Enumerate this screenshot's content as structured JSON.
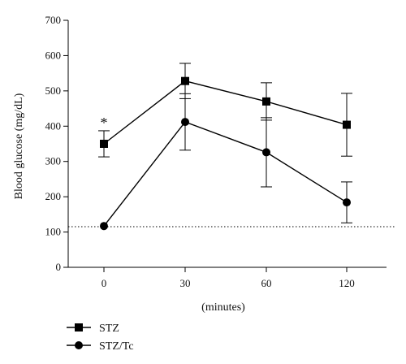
{
  "chart_data": {
    "type": "line",
    "xlabel": "(minutes)",
    "ylabel": "Blood glucose (mg/dL)",
    "ylim": [
      0,
      700
    ],
    "yticks": [
      0,
      100,
      200,
      300,
      400,
      500,
      600,
      700
    ],
    "categories": [
      "0",
      "30",
      "60",
      "120"
    ],
    "grid": false,
    "legend_position": "bottom-left",
    "reference_line": {
      "y": 115,
      "style": "dotted"
    },
    "annotations": [
      {
        "text": "*",
        "category": "0",
        "series": "STZ"
      }
    ],
    "series": [
      {
        "name": "STZ",
        "marker": "square",
        "values": [
          350,
          528,
          470,
          404
        ],
        "errors": [
          37,
          50,
          53,
          89
        ]
      },
      {
        "name": "STZ/Tc",
        "marker": "circle",
        "values": [
          117,
          412,
          326,
          184
        ],
        "errors": [
          0,
          80,
          98,
          58
        ]
      }
    ]
  }
}
